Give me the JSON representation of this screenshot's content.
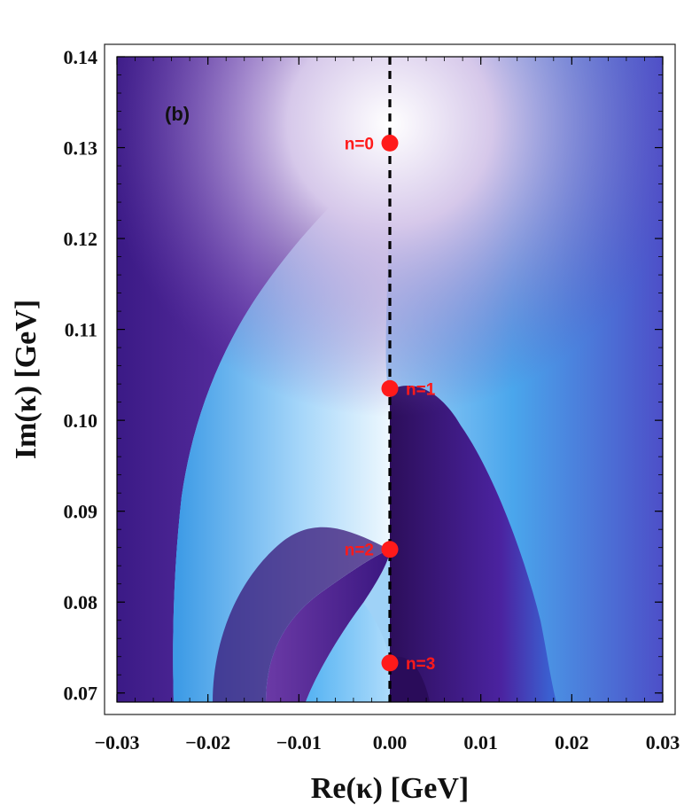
{
  "chart_data": {
    "type": "heatmap",
    "panel_label": "(b)",
    "xlabel": "Re(κ) [GeV]",
    "ylabel": "Im(κ) [GeV]",
    "xlim": [
      -0.03,
      0.03
    ],
    "ylim": [
      0.069,
      0.14
    ],
    "x_ticks": [
      -0.03,
      -0.02,
      -0.01,
      0.0,
      0.01,
      0.02,
      0.03
    ],
    "x_tick_labels": [
      "−0.03",
      "−0.02",
      "−0.01",
      "0.00",
      "0.01",
      "0.02",
      "0.03"
    ],
    "y_ticks": [
      0.07,
      0.08,
      0.09,
      0.1,
      0.11,
      0.12,
      0.13,
      0.14
    ],
    "y_tick_labels": [
      "0.07",
      "0.08",
      "0.09",
      "0.10",
      "0.11",
      "0.12",
      "0.13",
      "0.14"
    ],
    "colormap": [
      "#3a0f7a",
      "#6b3aa6",
      "#3da4ee",
      "#e4f4fd",
      "#ffffff"
    ],
    "reference_line": {
      "x": 0.0,
      "style": "dashed",
      "color": "#000000"
    },
    "points": [
      {
        "label": "n=0",
        "x": 0.0,
        "y": 0.1305,
        "label_side": "left"
      },
      {
        "label": "n=1",
        "x": 0.0,
        "y": 0.1035,
        "label_side": "right"
      },
      {
        "label": "n=2",
        "x": 0.0,
        "y": 0.0858,
        "label_side": "left"
      },
      {
        "label": "n=3",
        "x": 0.0,
        "y": 0.0733,
        "label_side": "right"
      }
    ],
    "point_color": "#ff1a1a",
    "grid": false,
    "legend": "none"
  }
}
